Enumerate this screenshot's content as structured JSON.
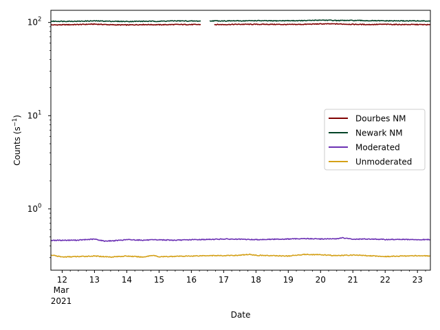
{
  "chart_data": {
    "type": "line",
    "title": "",
    "xlabel": "Date",
    "ylabel": "Counts (s",
    "ylabel_sup": "−1",
    "ylabel_close": ")",
    "yscale": "log",
    "ylim": [
      0.22,
      135
    ],
    "xlim": [
      11.65,
      23.4
    ],
    "x_ticks": [
      12,
      13,
      14,
      15,
      16,
      17,
      18,
      19,
      20,
      21,
      22,
      23
    ],
    "x_tick_labels": [
      "12",
      "13",
      "14",
      "15",
      "16",
      "17",
      "18",
      "19",
      "20",
      "21",
      "22",
      "23"
    ],
    "x_sub_label_month": "Mar",
    "x_sub_label_year": "2021",
    "y_major_ticks": [
      1,
      10,
      100
    ],
    "y_tick_base": "10",
    "y_tick_exponents": [
      "0",
      "1",
      "2"
    ],
    "grid": false,
    "legend_position": "center-right",
    "series": [
      {
        "name": "Dourbes NM",
        "color": "#800000",
        "gap": [
          16.3,
          16.7
        ],
        "points": [
          [
            11.65,
            94
          ],
          [
            12.5,
            95
          ],
          [
            13.0,
            96
          ],
          [
            13.5,
            94.5
          ],
          [
            14.0,
            94
          ],
          [
            14.5,
            95
          ],
          [
            15.0,
            94.5
          ],
          [
            15.5,
            95
          ],
          [
            16.0,
            95
          ],
          [
            16.3,
            95
          ],
          [
            16.7,
            95
          ],
          [
            17.0,
            95
          ],
          [
            17.5,
            95.5
          ],
          [
            18.0,
            95.5
          ],
          [
            18.5,
            95.5
          ],
          [
            19.0,
            95
          ],
          [
            19.5,
            95.5
          ],
          [
            20.0,
            96.5
          ],
          [
            20.5,
            96.5
          ],
          [
            21.0,
            95.5
          ],
          [
            21.5,
            95
          ],
          [
            22.0,
            95.5
          ],
          [
            22.5,
            95
          ],
          [
            23.0,
            95
          ],
          [
            23.4,
            94.5
          ]
        ]
      },
      {
        "name": "Newark NM",
        "color": "#004225",
        "gap": [
          16.3,
          16.55
        ],
        "points": [
          [
            11.65,
            103
          ],
          [
            12.5,
            103
          ],
          [
            13.0,
            104
          ],
          [
            13.5,
            103
          ],
          [
            14.0,
            102.5
          ],
          [
            14.5,
            103
          ],
          [
            15.0,
            103
          ],
          [
            15.5,
            104
          ],
          [
            16.0,
            103.5
          ],
          [
            16.3,
            103.5
          ],
          [
            16.55,
            104
          ],
          [
            17.0,
            104
          ],
          [
            17.5,
            104
          ],
          [
            18.0,
            104.5
          ],
          [
            18.5,
            104
          ],
          [
            19.0,
            104.5
          ],
          [
            19.5,
            104.5
          ],
          [
            20.0,
            106
          ],
          [
            20.5,
            105
          ],
          [
            21.0,
            105
          ],
          [
            21.5,
            104.5
          ],
          [
            22.0,
            104
          ],
          [
            22.5,
            104
          ],
          [
            23.0,
            104
          ],
          [
            23.4,
            103.5
          ]
        ]
      },
      {
        "name": "Moderated",
        "color": "#6a2fb3",
        "points": [
          [
            11.65,
            0.46
          ],
          [
            12.5,
            0.462
          ],
          [
            13.0,
            0.474
          ],
          [
            13.3,
            0.452
          ],
          [
            13.6,
            0.455
          ],
          [
            14.0,
            0.468
          ],
          [
            14.5,
            0.462
          ],
          [
            15.0,
            0.466
          ],
          [
            15.5,
            0.461
          ],
          [
            16.0,
            0.467
          ],
          [
            16.5,
            0.47
          ],
          [
            17.0,
            0.475
          ],
          [
            17.5,
            0.472
          ],
          [
            18.0,
            0.468
          ],
          [
            18.5,
            0.472
          ],
          [
            19.0,
            0.475
          ],
          [
            19.5,
            0.48
          ],
          [
            20.0,
            0.476
          ],
          [
            20.5,
            0.477
          ],
          [
            20.65,
            0.49
          ],
          [
            21.0,
            0.472
          ],
          [
            21.5,
            0.476
          ],
          [
            22.0,
            0.469
          ],
          [
            22.5,
            0.471
          ],
          [
            23.0,
            0.466
          ],
          [
            23.4,
            0.47
          ]
        ]
      },
      {
        "name": "Unmoderated",
        "color": "#d4a017",
        "points": [
          [
            11.65,
            0.32
          ],
          [
            12.0,
            0.305
          ],
          [
            12.5,
            0.308
          ],
          [
            13.0,
            0.312
          ],
          [
            13.5,
            0.305
          ],
          [
            14.0,
            0.312
          ],
          [
            14.5,
            0.304
          ],
          [
            14.8,
            0.318
          ],
          [
            15.0,
            0.306
          ],
          [
            15.5,
            0.31
          ],
          [
            16.0,
            0.312
          ],
          [
            16.5,
            0.316
          ],
          [
            17.0,
            0.315
          ],
          [
            17.5,
            0.318
          ],
          [
            17.8,
            0.326
          ],
          [
            18.0,
            0.318
          ],
          [
            18.5,
            0.315
          ],
          [
            19.0,
            0.312
          ],
          [
            19.5,
            0.325
          ],
          [
            20.0,
            0.322
          ],
          [
            20.5,
            0.315
          ],
          [
            21.0,
            0.32
          ],
          [
            21.5,
            0.315
          ],
          [
            22.0,
            0.308
          ],
          [
            22.5,
            0.312
          ],
          [
            23.0,
            0.315
          ],
          [
            23.4,
            0.312
          ]
        ]
      }
    ]
  }
}
